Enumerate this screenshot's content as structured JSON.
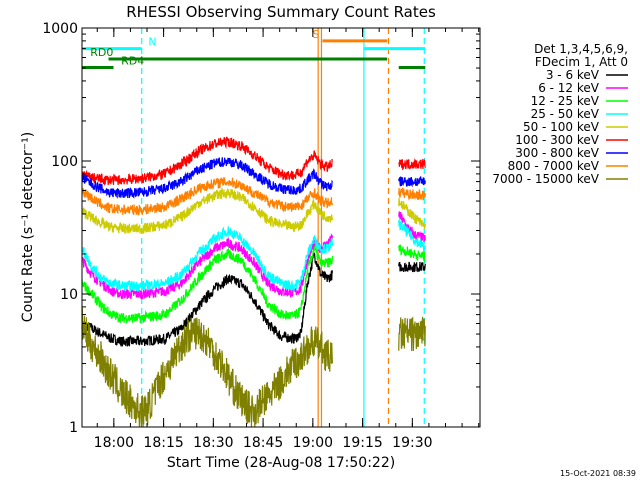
{
  "chart_data": {
    "type": "line",
    "title": "RHESSI Observing Summary Count Rates",
    "xlabel": "Start Time (28-Aug-08 17:50:22)",
    "ylabel": "Count Rate (s⁻¹ detector⁻¹)",
    "x_units": "minutes after 17:50:22",
    "xlim": [
      0,
      120
    ],
    "ylim": [
      1,
      1000
    ],
    "yscale": "log",
    "x_ticks": [
      {
        "t": 9.6,
        "label": "18:00"
      },
      {
        "t": 24.6,
        "label": "18:15"
      },
      {
        "t": 39.6,
        "label": "18:30"
      },
      {
        "t": 54.6,
        "label": "18:45"
      },
      {
        "t": 69.6,
        "label": "19:00"
      },
      {
        "t": 84.6,
        "label": "19:15"
      },
      {
        "t": 99.6,
        "label": "19:30"
      }
    ],
    "y_ticks": [
      {
        "v": 1,
        "label": "1"
      },
      {
        "v": 10,
        "label": "10"
      },
      {
        "v": 100,
        "label": "100"
      },
      {
        "v": 1000,
        "label": "1000"
      }
    ],
    "legend_header": [
      "Det 1,3,4,5,6,9,",
      "FDecim 1, Att 0"
    ],
    "legend_position": "right",
    "footer_date": "15-Oct-2021 08:39",
    "segments": [
      [
        0,
        75.5
      ],
      [
        95.5,
        103.5
      ]
    ],
    "series": [
      {
        "name": "3 - 6 keV",
        "color": "#000000",
        "points": [
          [
            0,
            6
          ],
          [
            3,
            5.5
          ],
          [
            6,
            5
          ],
          [
            9,
            4.6
          ],
          [
            12,
            4.4
          ],
          [
            18,
            4.4
          ],
          [
            25,
            4.6
          ],
          [
            30,
            5.5
          ],
          [
            35,
            8
          ],
          [
            40,
            11
          ],
          [
            44,
            13
          ],
          [
            48,
            12
          ],
          [
            52,
            9
          ],
          [
            56,
            6
          ],
          [
            60,
            4.8
          ],
          [
            64,
            4.6
          ],
          [
            66,
            5
          ],
          [
            68,
            12
          ],
          [
            70,
            20
          ],
          [
            72,
            14
          ],
          [
            74,
            13
          ],
          [
            75.5,
            14
          ],
          [
            95.5,
            16
          ],
          [
            100,
            16
          ],
          [
            103.5,
            16
          ]
        ]
      },
      {
        "name": "6 - 12 keV",
        "color": "#ff00ff",
        "points": [
          [
            0,
            18
          ],
          [
            3,
            14
          ],
          [
            6,
            12
          ],
          [
            9,
            10.5
          ],
          [
            12,
            10
          ],
          [
            18,
            10
          ],
          [
            25,
            10.5
          ],
          [
            30,
            12
          ],
          [
            35,
            17
          ],
          [
            40,
            22
          ],
          [
            44,
            24
          ],
          [
            48,
            22
          ],
          [
            52,
            17
          ],
          [
            56,
            12
          ],
          [
            60,
            10.5
          ],
          [
            64,
            10.2
          ],
          [
            66,
            11
          ],
          [
            68,
            18
          ],
          [
            70,
            24
          ],
          [
            72,
            22
          ],
          [
            74,
            24
          ],
          [
            75.5,
            26
          ],
          [
            95.5,
            40
          ],
          [
            98,
            32
          ],
          [
            100,
            28
          ],
          [
            103.5,
            26
          ]
        ]
      },
      {
        "name": "12 - 25 keV",
        "color": "#00ff00",
        "points": [
          [
            0,
            12
          ],
          [
            3,
            10
          ],
          [
            6,
            8
          ],
          [
            9,
            7
          ],
          [
            12,
            6.6
          ],
          [
            18,
            6.6
          ],
          [
            25,
            7
          ],
          [
            30,
            9
          ],
          [
            35,
            13
          ],
          [
            40,
            18
          ],
          [
            44,
            20
          ],
          [
            48,
            18
          ],
          [
            52,
            13
          ],
          [
            56,
            8.5
          ],
          [
            60,
            7
          ],
          [
            64,
            6.8
          ],
          [
            66,
            7.5
          ],
          [
            68,
            15
          ],
          [
            70,
            22
          ],
          [
            72,
            17
          ],
          [
            74,
            17
          ],
          [
            75.5,
            18
          ],
          [
            95.5,
            22
          ],
          [
            100,
            20
          ],
          [
            103.5,
            19
          ]
        ]
      },
      {
        "name": "25 - 50 keV",
        "color": "#00ffff",
        "points": [
          [
            0,
            22
          ],
          [
            3,
            16
          ],
          [
            6,
            13
          ],
          [
            9,
            12
          ],
          [
            12,
            11.5
          ],
          [
            18,
            11.5
          ],
          [
            25,
            12
          ],
          [
            30,
            14
          ],
          [
            35,
            20
          ],
          [
            40,
            26
          ],
          [
            44,
            30
          ],
          [
            48,
            26
          ],
          [
            52,
            20
          ],
          [
            56,
            14
          ],
          [
            60,
            12
          ],
          [
            64,
            11.5
          ],
          [
            66,
            12.5
          ],
          [
            68,
            20
          ],
          [
            70,
            26
          ],
          [
            72,
            22
          ],
          [
            74,
            22
          ],
          [
            75.5,
            24
          ],
          [
            95.5,
            34
          ],
          [
            100,
            26
          ],
          [
            103.5,
            22
          ]
        ]
      },
      {
        "name": "50 - 100 keV",
        "color": "#cccc00",
        "points": [
          [
            0,
            42
          ],
          [
            4,
            36
          ],
          [
            8,
            32
          ],
          [
            12,
            31
          ],
          [
            18,
            31
          ],
          [
            25,
            33
          ],
          [
            30,
            38
          ],
          [
            35,
            48
          ],
          [
            40,
            55
          ],
          [
            44,
            58
          ],
          [
            48,
            53
          ],
          [
            52,
            45
          ],
          [
            56,
            36
          ],
          [
            60,
            33
          ],
          [
            64,
            32
          ],
          [
            66,
            33
          ],
          [
            68,
            40
          ],
          [
            70,
            48
          ],
          [
            72,
            40
          ],
          [
            74,
            38
          ],
          [
            75.5,
            38
          ],
          [
            95.5,
            50
          ],
          [
            100,
            38
          ],
          [
            103.5,
            32
          ]
        ]
      },
      {
        "name": "100 - 300 keV",
        "color": "#ff0000",
        "points": [
          [
            0,
            78
          ],
          [
            4,
            74
          ],
          [
            8,
            72
          ],
          [
            12,
            72
          ],
          [
            18,
            74
          ],
          [
            25,
            80
          ],
          [
            30,
            95
          ],
          [
            35,
            118
          ],
          [
            40,
            135
          ],
          [
            44,
            140
          ],
          [
            48,
            130
          ],
          [
            52,
            110
          ],
          [
            56,
            90
          ],
          [
            60,
            80
          ],
          [
            64,
            78
          ],
          [
            66,
            82
          ],
          [
            68,
            100
          ],
          [
            70,
            110
          ],
          [
            72,
            95
          ],
          [
            74,
            90
          ],
          [
            75.5,
            95
          ]
        ]
      },
      {
        "name": "300 - 800 keV",
        "color": "#0000ff",
        "points": [
          [
            0,
            75
          ],
          [
            4,
            65
          ],
          [
            8,
            58
          ],
          [
            12,
            57
          ],
          [
            18,
            58
          ],
          [
            25,
            62
          ],
          [
            30,
            70
          ],
          [
            35,
            85
          ],
          [
            40,
            96
          ],
          [
            44,
            100
          ],
          [
            48,
            93
          ],
          [
            52,
            80
          ],
          [
            56,
            68
          ],
          [
            60,
            62
          ],
          [
            64,
            60
          ],
          [
            66,
            62
          ],
          [
            68,
            72
          ],
          [
            70,
            80
          ],
          [
            72,
            68
          ],
          [
            74,
            64
          ],
          [
            75.5,
            66
          ],
          [
            95.5,
            70
          ],
          [
            100,
            70
          ],
          [
            103.5,
            70
          ]
        ]
      },
      {
        "name": "800 - 7000 keV",
        "color": "#ff8000",
        "points": [
          [
            0,
            60
          ],
          [
            4,
            50
          ],
          [
            8,
            44
          ],
          [
            12,
            43
          ],
          [
            18,
            43
          ],
          [
            25,
            45
          ],
          [
            30,
            52
          ],
          [
            35,
            62
          ],
          [
            40,
            68
          ],
          [
            44,
            70
          ],
          [
            48,
            66
          ],
          [
            52,
            57
          ],
          [
            56,
            50
          ],
          [
            60,
            46
          ],
          [
            64,
            45
          ],
          [
            66,
            46
          ],
          [
            68,
            52
          ],
          [
            70,
            58
          ],
          [
            72,
            50
          ],
          [
            74,
            48
          ],
          [
            75.5,
            50
          ],
          [
            95.5,
            58
          ],
          [
            100,
            56
          ],
          [
            103.5,
            55
          ]
        ]
      },
      {
        "name": "7000 - 15000 keV",
        "color": "#808000",
        "points": [
          [
            0,
            6
          ],
          [
            2,
            4.5
          ],
          [
            4,
            3.8
          ],
          [
            6,
            3.2
          ],
          [
            8,
            2.6
          ],
          [
            10,
            2.2
          ],
          [
            12,
            1.8
          ],
          [
            14,
            1.6
          ],
          [
            16,
            1.4
          ],
          [
            18,
            1.3
          ],
          [
            20,
            1.4
          ],
          [
            22,
            1.8
          ],
          [
            24,
            2.3
          ],
          [
            26,
            2.8
          ],
          [
            28,
            3.5
          ],
          [
            30,
            4.2
          ],
          [
            32,
            4.8
          ],
          [
            34,
            5.2
          ],
          [
            36,
            5
          ],
          [
            38,
            4.4
          ],
          [
            40,
            3.6
          ],
          [
            42,
            3
          ],
          [
            44,
            2.4
          ],
          [
            46,
            1.9
          ],
          [
            48,
            1.6
          ],
          [
            50,
            1.4
          ],
          [
            52,
            1.3
          ],
          [
            54,
            1.5
          ],
          [
            56,
            1.7
          ],
          [
            58,
            1.9
          ],
          [
            60,
            2.2
          ],
          [
            62,
            2.6
          ],
          [
            64,
            3
          ],
          [
            66,
            3.3
          ],
          [
            68,
            4
          ],
          [
            70,
            4.4
          ],
          [
            72,
            4
          ],
          [
            74,
            3.4
          ],
          [
            75.5,
            3.2
          ],
          [
            95.5,
            5
          ],
          [
            100,
            5
          ],
          [
            103.5,
            5
          ]
        ]
      }
    ],
    "annotations": {
      "state_bars": [
        {
          "label": "N",
          "color": "#00ffff",
          "y": 700,
          "x_start": 0,
          "x_end": 18,
          "label_at": 20
        },
        {
          "label": "",
          "color": "#00ffff",
          "y": 700,
          "x_start": 85,
          "x_end": 103.5
        },
        {
          "label": "S",
          "color": "#ff8000",
          "y": 800,
          "x_start": 72.5,
          "x_end": 92,
          "label_at": 69.5
        },
        {
          "label": "RD0",
          "color": "#008000",
          "y": 585,
          "x_start": 8,
          "x_end": 92,
          "label_at": 2.5
        },
        {
          "label": "RD4",
          "color": "#008000",
          "y": 505,
          "x_start": 0,
          "x_end": 9.5,
          "label_at": 11.8
        },
        {
          "label": "",
          "color": "#008000",
          "y": 505,
          "x_start": 95.5,
          "x_end": 103.5
        }
      ],
      "vlines": [
        {
          "x": 18,
          "color": "#00ffff",
          "style": "dashed"
        },
        {
          "x": 71.2,
          "color": "#ff8000",
          "style": "solid"
        },
        {
          "x": 72.2,
          "color": "#ff8000",
          "style": "solid"
        },
        {
          "x": 85,
          "color": "#00ffff",
          "style": "solid"
        },
        {
          "x": 92.4,
          "color": "#ff8000",
          "style": "dashed"
        },
        {
          "x": 103.2,
          "color": "#00ffff",
          "style": "dashed"
        }
      ]
    }
  }
}
